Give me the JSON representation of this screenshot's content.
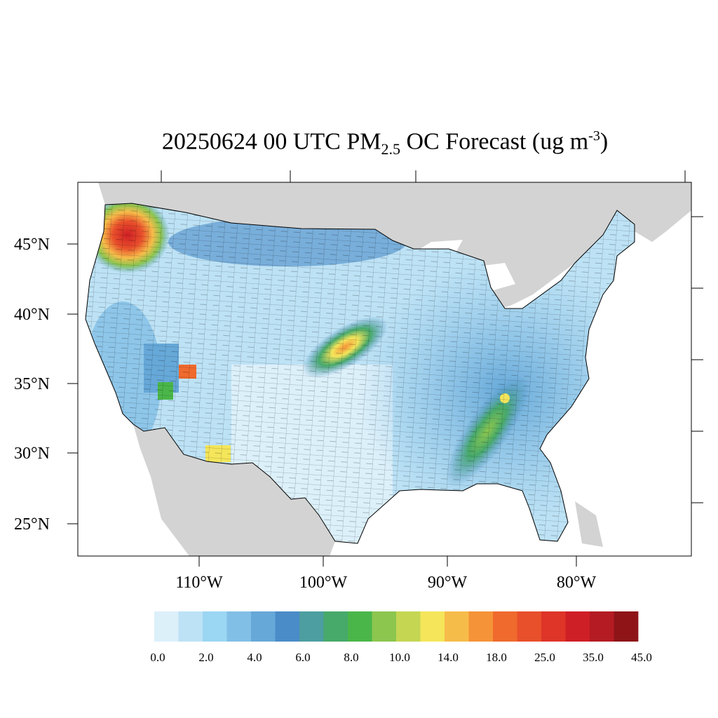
{
  "title": {
    "date_time": "20250624 00 UTC",
    "species_main": "PM",
    "species_sub": "2.5",
    "product": "OC Forecast (ug m",
    "unit_exp": "-3",
    "close": ")"
  },
  "map": {
    "projection": "Lambert conformal (CONUS)",
    "land_color": "#d3d3d3",
    "water_color": "#ffffff",
    "county_line_color": "#000000",
    "lat_labels": [
      "45°N",
      "40°N",
      "35°N",
      "30°N",
      "25°N"
    ],
    "lon_labels": [
      "110°W",
      "100°W",
      "90°W",
      "80°W"
    ],
    "hotspots": [
      {
        "name": "washington-oregon-smoke",
        "level": "25-45"
      },
      {
        "name": "kansas-nebraska-plume",
        "level": "14-25"
      },
      {
        "name": "tennessee-alabama-plume",
        "level": "8-14"
      },
      {
        "name": "utah-colorado-border",
        "level": "18-25"
      },
      {
        "name": "southern-arizona",
        "level": "14-18"
      }
    ]
  },
  "colorbar": {
    "colors": [
      "#dcf0fa",
      "#bde2f5",
      "#9bd6f3",
      "#82bfe6",
      "#66a8d8",
      "#4a8cc8",
      "#4c9ea0",
      "#47a96a",
      "#4ab649",
      "#8cc64f",
      "#c5d653",
      "#f4e55a",
      "#f6bc4a",
      "#f59338",
      "#f06a2d",
      "#e8502b",
      "#de3528",
      "#cf1f26",
      "#b51b23",
      "#8e1418"
    ],
    "tick_labels": [
      "0.0",
      "2.0",
      "4.0",
      "6.0",
      "8.0",
      "10.0",
      "14.0",
      "18.0",
      "25.0",
      "35.0",
      "45.0"
    ]
  }
}
